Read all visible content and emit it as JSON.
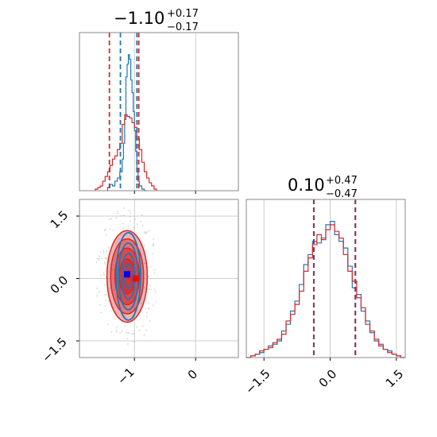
{
  "colors": {
    "blue": "#1f77b4",
    "red": "#d62728",
    "purple": "#8b3b5f",
    "grid": "#cccccc",
    "frame": "#888888",
    "point": "#aaaaaa",
    "marker_blue": "#0000ff",
    "marker_red": "#ff0000"
  },
  "chart_data": [
    {
      "type": "histogram",
      "panel": "param-1-marginal",
      "title": {
        "value": "−1.10",
        "upper": "+0.17",
        "lower": "−0.17"
      },
      "xlim": [
        -1.9,
        0.7
      ],
      "ylim": [
        0,
        1
      ],
      "grid": true,
      "red_dashed_lines": [
        -1.41,
        -0.93
      ],
      "blue_dashed_lines": [
        -1.23,
        -0.96
      ],
      "series": [
        {
          "color": "blue",
          "bin_edges": [
            -1.44,
            -1.4,
            -1.36,
            -1.32,
            -1.28,
            -1.24,
            -1.2,
            -1.18,
            -1.16,
            -1.14,
            -1.12,
            -1.1,
            -1.08,
            -1.06,
            -1.04,
            -1.02,
            -1.0,
            -0.98,
            -0.96,
            -0.94,
            -0.92,
            -0.88,
            -0.84,
            -0.8
          ],
          "counts": [
            0.02,
            0.04,
            0.03,
            0.06,
            0.08,
            0.12,
            0.2,
            0.3,
            0.45,
            0.72,
            0.8,
            0.86,
            0.83,
            0.7,
            0.62,
            0.5,
            0.38,
            0.25,
            0.14,
            0.06,
            0.03,
            0.01,
            0.0
          ]
        },
        {
          "color": "red",
          "bin_edges": [
            -1.64,
            -1.6,
            -1.56,
            -1.52,
            -1.48,
            -1.44,
            -1.4,
            -1.36,
            -1.32,
            -1.28,
            -1.24,
            -1.2,
            -1.16,
            -1.12,
            -1.08,
            -1.04,
            -1.0,
            -0.96,
            -0.92,
            -0.88,
            -0.84,
            -0.8,
            -0.76,
            -0.72,
            -0.68,
            -0.64
          ],
          "counts": [
            0.01,
            0.02,
            0.03,
            0.06,
            0.09,
            0.12,
            0.16,
            0.2,
            0.22,
            0.26,
            0.3,
            0.42,
            0.48,
            0.47,
            0.46,
            0.43,
            0.4,
            0.33,
            0.26,
            0.18,
            0.12,
            0.08,
            0.05,
            0.03,
            0.01
          ]
        }
      ]
    },
    {
      "type": "contour",
      "panel": "joint-2d",
      "xlim": [
        -1.9,
        0.7
      ],
      "ylim": [
        -1.9,
        1.9
      ],
      "xticks": [
        "−1",
        "0"
      ],
      "xtick_values": [
        -1,
        0
      ],
      "yticks": [
        "1.5",
        "0.0",
        "−1.5"
      ],
      "ytick_values": [
        1.5,
        0.0,
        -1.5
      ],
      "grid": true,
      "red_contours": {
        "center": [
          -1.12,
          0.05
        ],
        "radii": [
          [
            0.33,
            1.1
          ],
          [
            0.27,
            0.9
          ],
          [
            0.2,
            0.68
          ],
          [
            0.13,
            0.42
          ]
        ]
      },
      "blue_contours": {
        "center": [
          -1.1,
          0.05
        ],
        "radii": [
          [
            0.2,
            1.05
          ],
          [
            0.16,
            0.8
          ],
          [
            0.11,
            0.55
          ],
          [
            0.06,
            0.3
          ]
        ]
      },
      "markers": [
        {
          "color": "marker_blue",
          "x": -1.12,
          "y": 0.1
        },
        {
          "color": "marker_red",
          "x": -0.98,
          "y": 0.0
        }
      ]
    },
    {
      "type": "histogram",
      "panel": "param-2-marginal",
      "title": {
        "value": "0.10",
        "upper": "+0.47",
        "lower": "−0.47"
      },
      "xlim": [
        -1.9,
        1.7
      ],
      "ylim": [
        0,
        1
      ],
      "grid": true,
      "xticks": [
        "−1.5",
        "0.0",
        "1.5"
      ],
      "xtick_values": [
        -1.5,
        0.0,
        1.5
      ],
      "dashed_lines": [
        -0.37,
        0.57
      ],
      "series": [
        {
          "color": "blue",
          "bin_edges": [
            -1.9,
            -1.8,
            -1.7,
            -1.6,
            -1.5,
            -1.4,
            -1.3,
            -1.2,
            -1.1,
            -1.0,
            -0.9,
            -0.8,
            -0.7,
            -0.6,
            -0.5,
            -0.4,
            -0.3,
            -0.2,
            -0.1,
            0.0,
            0.1,
            0.2,
            0.3,
            0.4,
            0.5,
            0.6,
            0.7,
            0.8,
            0.9,
            1.0,
            1.1,
            1.2,
            1.3,
            1.4,
            1.5,
            1.6,
            1.7
          ],
          "counts": [
            0.0,
            0.01,
            0.02,
            0.03,
            0.05,
            0.07,
            0.08,
            0.1,
            0.16,
            0.2,
            0.28,
            0.34,
            0.44,
            0.56,
            0.62,
            0.7,
            0.69,
            0.72,
            0.8,
            0.82,
            0.74,
            0.7,
            0.66,
            0.55,
            0.42,
            0.38,
            0.28,
            0.22,
            0.15,
            0.1,
            0.08,
            0.05,
            0.04,
            0.02,
            0.01,
            0.0
          ]
        },
        {
          "color": "red",
          "bin_edges": [
            -1.9,
            -1.8,
            -1.7,
            -1.6,
            -1.5,
            -1.4,
            -1.3,
            -1.2,
            -1.1,
            -1.0,
            -0.9,
            -0.8,
            -0.7,
            -0.6,
            -0.5,
            -0.4,
            -0.3,
            -0.2,
            -0.1,
            0.0,
            0.1,
            0.2,
            0.3,
            0.4,
            0.5,
            0.6,
            0.7,
            0.8,
            0.9,
            1.0,
            1.1,
            1.2,
            1.3,
            1.4,
            1.5,
            1.6,
            1.7
          ],
          "counts": [
            0.0,
            0.01,
            0.02,
            0.04,
            0.05,
            0.06,
            0.09,
            0.11,
            0.14,
            0.22,
            0.26,
            0.32,
            0.4,
            0.52,
            0.6,
            0.68,
            0.74,
            0.71,
            0.77,
            0.8,
            0.76,
            0.72,
            0.62,
            0.52,
            0.46,
            0.36,
            0.3,
            0.2,
            0.16,
            0.11,
            0.07,
            0.05,
            0.03,
            0.02,
            0.01,
            0.0
          ]
        }
      ]
    }
  ]
}
